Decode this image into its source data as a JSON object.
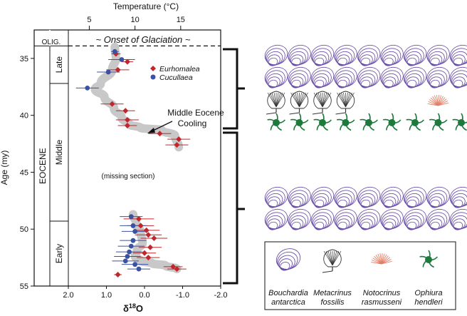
{
  "chart_data": {
    "type": "scatter",
    "top_axis": {
      "label": "Temperature (°C)",
      "ticks": [
        {
          "temp": 5,
          "d18o": 1.45,
          "label": "5"
        },
        {
          "temp": 10,
          "d18o": 0.25,
          "label": "10"
        },
        {
          "temp": 15,
          "d18o": -0.95,
          "label": "15"
        }
      ]
    },
    "x": {
      "label_main": "δ",
      "label_sup": "18",
      "label_tail": "O",
      "lim": [
        2.0,
        -2.0
      ],
      "ticks": [
        {
          "v": 2.0,
          "label": "2.0"
        },
        {
          "v": 1.0,
          "label": "1.0"
        },
        {
          "v": 0.0,
          "label": "0.0"
        },
        {
          "v": -1.0,
          "label": "-1.0"
        },
        {
          "v": -2.0,
          "label": "-2.0"
        }
      ]
    },
    "y": {
      "label": "Age (my)",
      "lim": [
        32.5,
        55
      ],
      "ticks": [
        35,
        40,
        45,
        50,
        55
      ]
    },
    "epochs": {
      "era_label": "EOCENE",
      "oligocene_label": "OLIG.",
      "boundary_age": 33.9,
      "subdivisions": [
        {
          "label": "Late",
          "from": 33.9,
          "to": 37.2
        },
        {
          "label": "Middle",
          "from": 37.2,
          "to": 49.3
        },
        {
          "label": "Early",
          "from": 49.3,
          "to": 55.0
        }
      ]
    },
    "annotations": {
      "glaciation": "~ Onset of Glaciation ~",
      "cooling_line1": "Middle Eocene",
      "cooling_line2": "Cooling",
      "missing": "(missing section)"
    },
    "colors": {
      "eurhomalea": "#c0272d",
      "cucullaea": "#3a52a3",
      "trend": "#c8c8c8",
      "glaciation_text": "#2b2a8c",
      "bouchardia": "#6a4fa8",
      "metacrinus": "#333333",
      "notocrinus": "#e0806a",
      "ophiura": "#1e7a3c"
    },
    "series": [
      {
        "name": "Eurhomalea",
        "marker": "diamond",
        "points": [
          {
            "x": 0.75,
            "y": 34.6,
            "err": 0.12
          },
          {
            "x": 0.45,
            "y": 35.3,
            "err": 0.15
          },
          {
            "x": 0.7,
            "y": 36.0,
            "err": 0.3
          },
          {
            "x": 0.85,
            "y": 39.0,
            "err": 0.3
          },
          {
            "x": 0.5,
            "y": 39.6,
            "err": 0.25
          },
          {
            "x": 0.45,
            "y": 40.4,
            "err": 0.3
          },
          {
            "x": 0.45,
            "y": 40.9,
            "err": 0.25
          },
          {
            "x": -0.4,
            "y": 41.6,
            "err": 0.3
          },
          {
            "x": -0.9,
            "y": 42.1,
            "err": 0.3
          },
          {
            "x": -0.85,
            "y": 42.6,
            "err": 0.3
          },
          {
            "x": 0.15,
            "y": 49.1,
            "err": 0.4
          },
          {
            "x": 0.1,
            "y": 49.7,
            "err": 0.35
          },
          {
            "x": -0.05,
            "y": 50.1,
            "err": 0.35
          },
          {
            "x": -0.1,
            "y": 50.5,
            "err": 0.35
          },
          {
            "x": -0.25,
            "y": 50.8,
            "err": 0.35
          },
          {
            "x": -0.15,
            "y": 51.6,
            "err": 0.3
          },
          {
            "x": 0.0,
            "y": 52.1,
            "err": 0.3
          },
          {
            "x": -0.1,
            "y": 52.5,
            "err": 0.3
          },
          {
            "x": -0.75,
            "y": 53.3,
            "err": 0.25
          },
          {
            "x": -0.85,
            "y": 53.5,
            "err": 0.25
          },
          {
            "x": 0.7,
            "y": 54.0,
            "err": 0.1
          }
        ]
      },
      {
        "name": "Cucullaea",
        "marker": "circle",
        "points": [
          {
            "x": 0.78,
            "y": 34.4,
            "err": 0.1
          },
          {
            "x": 0.6,
            "y": 35.1,
            "err": 0.35
          },
          {
            "x": 0.95,
            "y": 36.2,
            "err": 0.3
          },
          {
            "x": 1.5,
            "y": 37.6,
            "err": 0.3
          },
          {
            "x": 0.35,
            "y": 48.9,
            "err": 0.3
          },
          {
            "x": 0.3,
            "y": 49.7,
            "err": 0.35
          },
          {
            "x": 0.25,
            "y": 50.2,
            "err": 0.35
          },
          {
            "x": 0.3,
            "y": 51.0,
            "err": 0.35
          },
          {
            "x": 0.35,
            "y": 51.5,
            "err": 0.35
          },
          {
            "x": 0.4,
            "y": 52.0,
            "err": 0.35
          },
          {
            "x": 0.45,
            "y": 52.4,
            "err": 0.35
          },
          {
            "x": 0.5,
            "y": 52.8,
            "err": 0.35
          },
          {
            "x": 0.25,
            "y": 53.1,
            "err": 0.35
          },
          {
            "x": 0.15,
            "y": 53.5,
            "err": 0.3
          }
        ]
      }
    ],
    "trend": [
      [
        0.78,
        34.0
      ],
      [
        0.75,
        35.0
      ],
      [
        0.85,
        36.0
      ],
      [
        1.15,
        37.2
      ],
      [
        1.3,
        37.7
      ],
      [
        1.05,
        38.4
      ],
      [
        0.8,
        39.4
      ],
      [
        0.6,
        40.2
      ],
      [
        0.4,
        40.8
      ],
      [
        0.1,
        41.1
      ],
      [
        -0.45,
        41.3
      ],
      [
        -0.8,
        41.8
      ],
      [
        -0.9,
        42.8
      ],
      [
        null,
        null
      ],
      [
        0.3,
        48.7
      ],
      [
        0.22,
        49.5
      ],
      [
        0.1,
        50.3
      ],
      [
        0.05,
        51.2
      ],
      [
        0.2,
        51.9
      ],
      [
        0.25,
        52.4
      ],
      [
        0.1,
        52.8
      ],
      [
        -0.2,
        53.0
      ],
      [
        -0.55,
        53.2
      ],
      [
        -0.85,
        53.5
      ]
    ]
  },
  "fauna": {
    "legend": [
      {
        "key": "bouchardia",
        "line1": "Bouchardia",
        "line2": "antarctica"
      },
      {
        "key": "metacrinus",
        "line1": "Metacrinus",
        "line2": "fossilis"
      },
      {
        "key": "notocrinus",
        "line1": "Notocrinus",
        "line2": "rasmusseni"
      },
      {
        "key": "ophiura",
        "line1": "Ophiura",
        "line2": "hendleri"
      }
    ]
  }
}
